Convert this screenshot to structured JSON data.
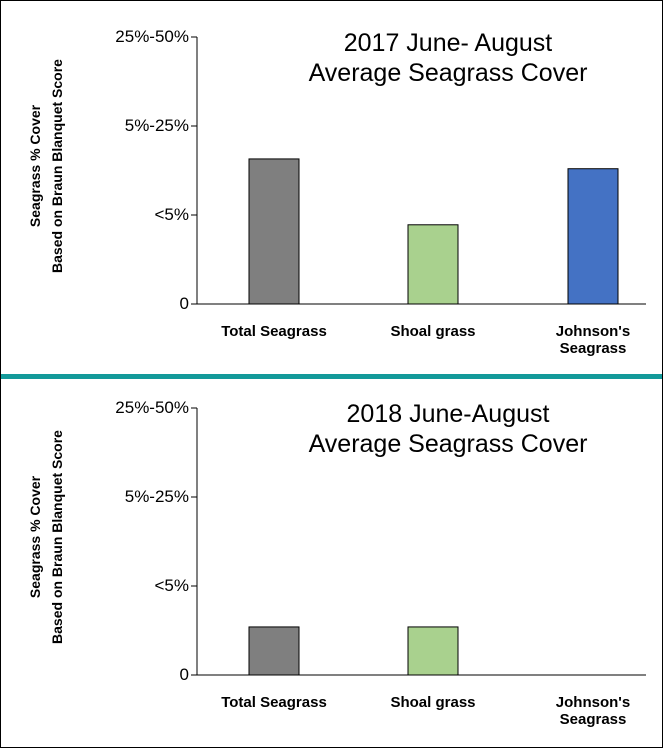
{
  "chart_data": [
    {
      "type": "bar",
      "title": [
        "2017 June- August",
        "Average Seagrass Cover"
      ],
      "y_label": [
        "Seagrass % Cover",
        "Based on Braun Blanquet Score"
      ],
      "categories": [
        "Total Seagrass",
        "Shoal grass",
        "Johnson's Seagrass"
      ],
      "values": [
        1.63,
        0.89,
        1.52
      ],
      "colors": [
        "#7f7f7f",
        "#a9d18e",
        "#4472c4"
      ],
      "ylim": [
        0,
        3
      ],
      "yticks": [
        0,
        {
          "value": 1,
          "label": "<5%"
        },
        {
          "value": 2,
          "label": "5%-25%"
        },
        {
          "value": 3,
          "label": "25%-50%"
        }
      ]
    },
    {
      "type": "bar",
      "title": [
        "2018 June-August",
        "Average Seagrass Cover"
      ],
      "y_label": [
        "Seagrass % Cover",
        "Based on Braun Blanquet Score"
      ],
      "categories": [
        "Total Seagrass",
        "Shoal grass",
        "Johnson's Seagrass"
      ],
      "values": [
        0.54,
        0.54,
        0
      ],
      "colors": [
        "#7f7f7f",
        "#a9d18e",
        "#4472c4"
      ],
      "ylim": [
        0,
        3
      ],
      "yticks": [
        0,
        {
          "value": 1,
          "label": "<5%"
        },
        {
          "value": 2,
          "label": "5%-25%"
        },
        {
          "value": 3,
          "label": "25%-50%"
        }
      ]
    }
  ]
}
